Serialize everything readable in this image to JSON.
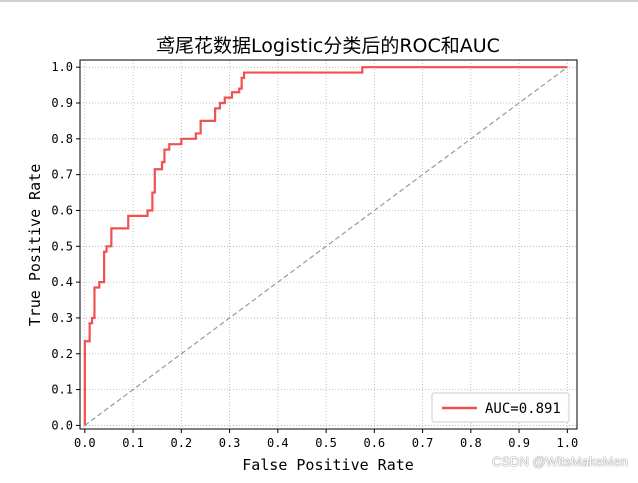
{
  "chart_data": {
    "type": "line",
    "title": "鸢尾花数据Logistic分类后的ROC和AUC",
    "xlabel": "False Positive Rate",
    "ylabel": "True Positive Rate",
    "xlim": [
      -0.01,
      1.02
    ],
    "ylim": [
      -0.01,
      1.02
    ],
    "xticks": [
      0.0,
      0.1,
      0.2,
      0.3,
      0.4,
      0.5,
      0.6,
      0.7,
      0.8,
      0.9,
      1.0
    ],
    "yticks": [
      0.0,
      0.1,
      0.2,
      0.3,
      0.4,
      0.5,
      0.6,
      0.7,
      0.8,
      0.9,
      1.0
    ],
    "xtick_labels": [
      "0.0",
      "0.1",
      "0.2",
      "0.3",
      "0.4",
      "0.5",
      "0.6",
      "0.7",
      "0.8",
      "0.9",
      "1.0"
    ],
    "ytick_labels": [
      "0.0",
      "0.1",
      "0.2",
      "0.3",
      "0.4",
      "0.5",
      "0.6",
      "0.7",
      "0.8",
      "0.9",
      "1.0"
    ],
    "grid": true,
    "legend_position": "lower-right",
    "series": [
      {
        "name": "AUC=0.891",
        "color": "#f05050",
        "x": [
          0.0,
          0.0,
          0.01,
          0.01,
          0.015,
          0.015,
          0.02,
          0.02,
          0.03,
          0.03,
          0.04,
          0.04,
          0.045,
          0.045,
          0.055,
          0.055,
          0.06,
          0.06,
          0.09,
          0.09,
          0.13,
          0.13,
          0.14,
          0.14,
          0.145,
          0.145,
          0.16,
          0.16,
          0.165,
          0.165,
          0.175,
          0.175,
          0.2,
          0.2,
          0.23,
          0.23,
          0.24,
          0.24,
          0.27,
          0.27,
          0.28,
          0.28,
          0.29,
          0.29,
          0.305,
          0.305,
          0.32,
          0.32,
          0.325,
          0.325,
          0.33,
          0.33,
          0.335,
          0.335,
          0.575,
          0.575,
          1.0
        ],
        "y": [
          0.0,
          0.235,
          0.235,
          0.285,
          0.285,
          0.3,
          0.3,
          0.385,
          0.385,
          0.4,
          0.4,
          0.485,
          0.485,
          0.5,
          0.5,
          0.55,
          0.55,
          0.55,
          0.55,
          0.585,
          0.585,
          0.6,
          0.6,
          0.65,
          0.65,
          0.715,
          0.715,
          0.735,
          0.735,
          0.77,
          0.77,
          0.785,
          0.785,
          0.8,
          0.8,
          0.815,
          0.815,
          0.85,
          0.85,
          0.885,
          0.885,
          0.9,
          0.9,
          0.915,
          0.915,
          0.93,
          0.93,
          0.94,
          0.94,
          0.97,
          0.97,
          0.985,
          0.985,
          0.985,
          0.985,
          1.0,
          1.0
        ]
      },
      {
        "name": "",
        "color": "#999999",
        "style": "dashed",
        "x": [
          0,
          1
        ],
        "y": [
          0,
          1
        ]
      }
    ]
  },
  "watermark": "CSDN @WitsMakeMen"
}
